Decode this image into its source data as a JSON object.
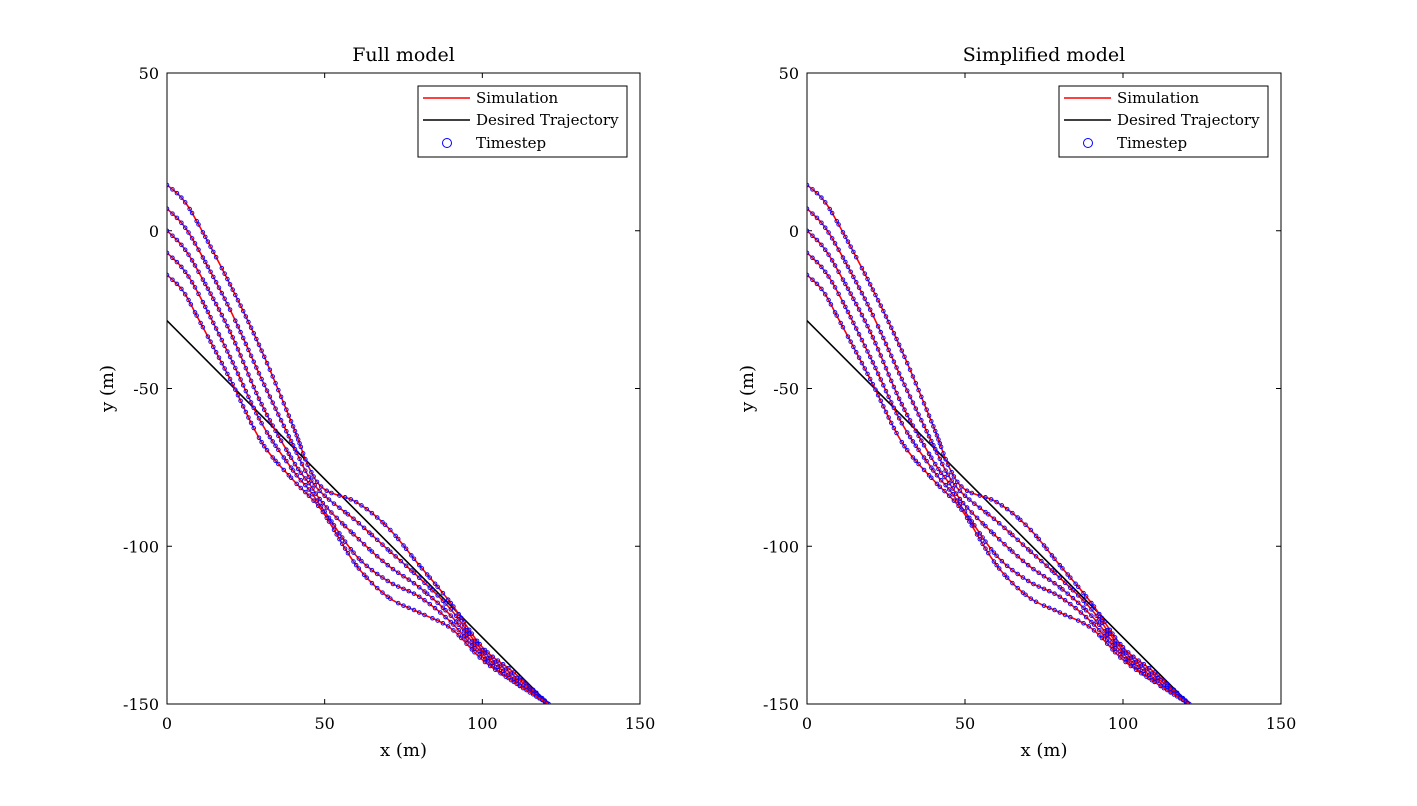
{
  "figure": {
    "panels": [
      {
        "title": "Full model"
      },
      {
        "title": "Simplified model"
      }
    ]
  },
  "colors": {
    "simulation": "#ff0000",
    "desired": "#000000",
    "timestep": "#0000ff"
  },
  "chart_data": [
    {
      "type": "line",
      "title": "Full model",
      "xlabel": "x (m)",
      "ylabel": "y (m)",
      "xlim": [
        0,
        150
      ],
      "ylim": [
        -150,
        50
      ],
      "xticks": [
        "0",
        "50",
        "100",
        "150"
      ],
      "yticks": [
        "-150",
        "-100",
        "-50",
        "0",
        "50"
      ],
      "grid": false,
      "legend_position": "top-right",
      "legend": [
        "Simulation",
        "Desired Trajectory",
        "Timestep"
      ],
      "desired_trajectory": {
        "x": [
          0,
          121
        ],
        "y": [
          -28.5,
          -150
        ]
      },
      "series": [
        {
          "x": [
            0,
            5,
            10,
            20,
            30,
            40,
            45,
            50,
            60,
            70,
            80,
            90,
            100,
            110,
            121
          ],
          "y": [
            14.5,
            10,
            2,
            -17,
            -38,
            -62,
            -75,
            -82,
            -86,
            -94,
            -106,
            -118,
            -132,
            -140,
            -150
          ]
        },
        {
          "x": [
            0,
            5,
            10,
            20,
            30,
            40,
            45,
            50,
            60,
            70,
            80,
            90,
            100,
            110,
            121
          ],
          "y": [
            7,
            2,
            -6,
            -25,
            -47,
            -68,
            -78,
            -84,
            -92,
            -101,
            -110,
            -120,
            -133,
            -141,
            -150
          ]
        },
        {
          "x": [
            0,
            5,
            10,
            20,
            30,
            40,
            45,
            50,
            60,
            70,
            80,
            90,
            100,
            110,
            121
          ],
          "y": [
            0,
            -5,
            -13,
            -32,
            -55,
            -73,
            -80,
            -87,
            -97,
            -106,
            -113,
            -122,
            -134,
            -142,
            -150
          ]
        },
        {
          "x": [
            0,
            5,
            10,
            20,
            30,
            40,
            45,
            50,
            60,
            70,
            80,
            90,
            100,
            110,
            121
          ],
          "y": [
            -7,
            -12,
            -20,
            -40,
            -61,
            -76,
            -82,
            -89,
            -103,
            -111,
            -116,
            -124,
            -135,
            -143,
            -150
          ]
        },
        {
          "x": [
            0,
            5,
            10,
            20,
            30,
            40,
            45,
            50,
            60,
            70,
            80,
            90,
            100,
            110,
            121
          ],
          "y": [
            -14,
            -19,
            -28,
            -47,
            -67,
            -79,
            -84,
            -90,
            -106,
            -116,
            -121,
            -126,
            -136,
            -143,
            -150
          ]
        }
      ]
    },
    {
      "type": "line",
      "title": "Simplified model",
      "xlabel": "x (m)",
      "ylabel": "y (m)",
      "xlim": [
        0,
        150
      ],
      "ylim": [
        -150,
        50
      ],
      "xticks": [
        "0",
        "50",
        "100",
        "150"
      ],
      "yticks": [
        "-150",
        "-100",
        "-50",
        "0",
        "50"
      ],
      "grid": false,
      "legend_position": "top-right",
      "legend": [
        "Simulation",
        "Desired Trajectory",
        "Timestep"
      ],
      "desired_trajectory": {
        "x": [
          0,
          121
        ],
        "y": [
          -28.5,
          -150
        ]
      },
      "series": [
        {
          "x": [
            0,
            5,
            10,
            20,
            30,
            40,
            45,
            50,
            60,
            70,
            80,
            90,
            100,
            110,
            121
          ],
          "y": [
            14.5,
            10,
            2,
            -17,
            -38,
            -62,
            -75,
            -82,
            -86,
            -94,
            -106,
            -118,
            -132,
            -140,
            -150
          ]
        },
        {
          "x": [
            0,
            5,
            10,
            20,
            30,
            40,
            45,
            50,
            60,
            70,
            80,
            90,
            100,
            110,
            121
          ],
          "y": [
            7,
            2,
            -6,
            -25,
            -47,
            -68,
            -78,
            -84,
            -92,
            -101,
            -110,
            -120,
            -133,
            -141,
            -150
          ]
        },
        {
          "x": [
            0,
            5,
            10,
            20,
            30,
            40,
            45,
            50,
            60,
            70,
            80,
            90,
            100,
            110,
            121
          ],
          "y": [
            0,
            -5,
            -13,
            -32,
            -55,
            -73,
            -80,
            -87,
            -97,
            -106,
            -113,
            -122,
            -134,
            -142,
            -150
          ]
        },
        {
          "x": [
            0,
            5,
            10,
            20,
            30,
            40,
            45,
            50,
            60,
            70,
            80,
            90,
            100,
            110,
            121
          ],
          "y": [
            -7,
            -12,
            -20,
            -40,
            -61,
            -76,
            -82,
            -89,
            -103,
            -111,
            -116,
            -124,
            -135,
            -143,
            -150
          ]
        },
        {
          "x": [
            0,
            5,
            10,
            20,
            30,
            40,
            45,
            50,
            60,
            70,
            80,
            90,
            100,
            110,
            121
          ],
          "y": [
            -14,
            -19,
            -28,
            -47,
            -67,
            -79,
            -84,
            -90,
            -106,
            -116,
            -121,
            -126,
            -136,
            -143,
            -150
          ]
        }
      ]
    }
  ]
}
